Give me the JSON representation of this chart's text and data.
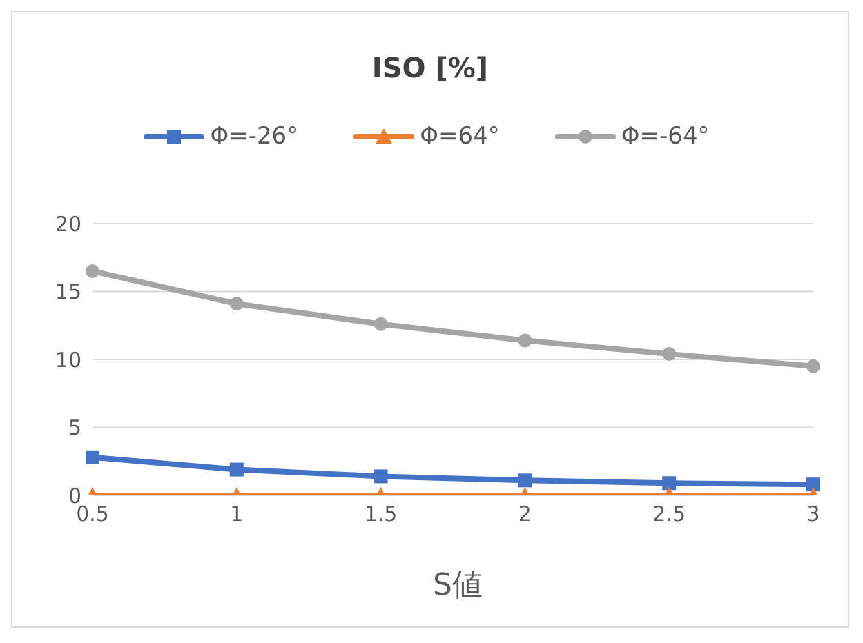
{
  "chart_data": {
    "type": "line",
    "title": "ISO [%]",
    "xlabel": "S値",
    "categories": [
      "0.5",
      "1",
      "1.5",
      "2",
      "2.5",
      "3"
    ],
    "series": [
      {
        "name": "Φ=-26°",
        "color": "#4472c4",
        "marker": "square",
        "values": [
          2.8,
          1.9,
          1.4,
          1.1,
          0.9,
          0.8
        ]
      },
      {
        "name": "Φ=64°",
        "color": "#ed7d31",
        "marker": "triangle",
        "values": [
          0,
          0,
          0,
          0,
          0,
          0
        ]
      },
      {
        "name": "Φ=-64°",
        "color": "#a5a5a5",
        "marker": "circle",
        "values": [
          16.5,
          14.1,
          12.6,
          11.4,
          10.4,
          9.5
        ]
      }
    ],
    "ylim": [
      0,
      20
    ],
    "yticks": [
      0,
      5,
      10,
      15,
      20
    ],
    "grid": "y",
    "legend": "top"
  }
}
